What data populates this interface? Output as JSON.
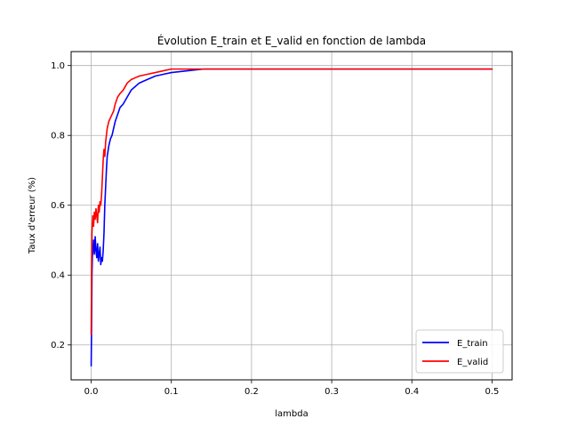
{
  "chart_data": {
    "type": "line",
    "title": "Évolution E_train et E_valid en fonction de lambda",
    "xlabel": "lambda",
    "ylabel": "Taux d'erreur (%)",
    "xlim": [
      -0.025,
      0.525
    ],
    "ylim": [
      0.1,
      1.04
    ],
    "xticks": [
      0.0,
      0.1,
      0.2,
      0.3,
      0.4,
      0.5
    ],
    "xtick_labels": [
      "0.0",
      "0.1",
      "0.2",
      "0.3",
      "0.4",
      "0.5"
    ],
    "yticks": [
      0.2,
      0.4,
      0.6,
      0.8,
      1.0
    ],
    "ytick_labels": [
      "0.2",
      "0.4",
      "0.6",
      "0.8",
      "1.0"
    ],
    "grid": true,
    "legend_position": "bottom-right",
    "series": [
      {
        "name": "E_train",
        "color": "#0000ff",
        "x": [
          0.0,
          0.0005,
          0.001,
          0.0015,
          0.002,
          0.003,
          0.004,
          0.005,
          0.006,
          0.007,
          0.008,
          0.009,
          0.01,
          0.011,
          0.012,
          0.013,
          0.014,
          0.015,
          0.016,
          0.017,
          0.018,
          0.019,
          0.02,
          0.022,
          0.024,
          0.026,
          0.028,
          0.03,
          0.033,
          0.036,
          0.04,
          0.045,
          0.05,
          0.055,
          0.06,
          0.07,
          0.08,
          0.09,
          0.1,
          0.12,
          0.14,
          0.16,
          0.18,
          0.2,
          0.25,
          0.3,
          0.35,
          0.4,
          0.45,
          0.5
        ],
        "y": [
          0.14,
          0.25,
          0.4,
          0.45,
          0.47,
          0.5,
          0.46,
          0.51,
          0.47,
          0.45,
          0.49,
          0.44,
          0.46,
          0.48,
          0.43,
          0.45,
          0.44,
          0.47,
          0.52,
          0.6,
          0.65,
          0.7,
          0.74,
          0.77,
          0.79,
          0.8,
          0.82,
          0.84,
          0.86,
          0.88,
          0.89,
          0.91,
          0.93,
          0.94,
          0.95,
          0.96,
          0.97,
          0.975,
          0.98,
          0.985,
          0.99,
          0.99,
          0.99,
          0.99,
          0.99,
          0.99,
          0.99,
          0.99,
          0.99,
          0.99
        ]
      },
      {
        "name": "E_valid",
        "color": "#ff0000",
        "x": [
          0.0,
          0.0005,
          0.001,
          0.0015,
          0.002,
          0.003,
          0.004,
          0.005,
          0.006,
          0.007,
          0.008,
          0.009,
          0.01,
          0.011,
          0.012,
          0.013,
          0.014,
          0.015,
          0.016,
          0.017,
          0.018,
          0.019,
          0.02,
          0.022,
          0.024,
          0.026,
          0.028,
          0.03,
          0.033,
          0.036,
          0.04,
          0.045,
          0.05,
          0.055,
          0.06,
          0.07,
          0.08,
          0.09,
          0.1,
          0.12,
          0.14,
          0.16,
          0.18,
          0.2,
          0.25,
          0.3,
          0.35,
          0.4,
          0.45,
          0.5
        ],
        "y": [
          0.23,
          0.4,
          0.52,
          0.55,
          0.57,
          0.54,
          0.58,
          0.56,
          0.59,
          0.57,
          0.55,
          0.6,
          0.58,
          0.61,
          0.6,
          0.63,
          0.68,
          0.73,
          0.76,
          0.74,
          0.78,
          0.8,
          0.82,
          0.84,
          0.85,
          0.86,
          0.87,
          0.89,
          0.91,
          0.92,
          0.93,
          0.95,
          0.96,
          0.965,
          0.97,
          0.975,
          0.98,
          0.985,
          0.99,
          0.99,
          0.99,
          0.99,
          0.99,
          0.99,
          0.99,
          0.99,
          0.99,
          0.99,
          0.99,
          0.99
        ]
      }
    ]
  }
}
